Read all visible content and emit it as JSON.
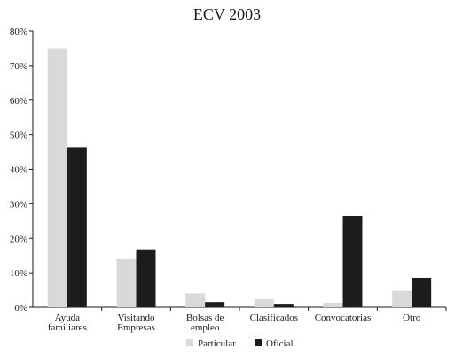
{
  "chart_data": {
    "type": "bar",
    "title": "ECV 2003",
    "xlabel": "",
    "ylabel": "",
    "categories": [
      [
        "Ayuda",
        "familiares"
      ],
      [
        "Visitando",
        "Empresas"
      ],
      [
        "Bolsas de",
        "empleo"
      ],
      [
        "Clasificados"
      ],
      [
        "Convocatorias"
      ],
      [
        "Otro"
      ]
    ],
    "series": [
      {
        "name": "Particular",
        "color": "#d9d9d9",
        "values": [
          75.0,
          14.2,
          4.0,
          2.3,
          1.3,
          4.7
        ]
      },
      {
        "name": "Oficial",
        "color": "#1c1c1c",
        "values": [
          46.2,
          16.8,
          1.5,
          1.0,
          26.5,
          8.5
        ]
      }
    ],
    "ylim": [
      0,
      80
    ],
    "yticks": [
      0,
      10,
      20,
      30,
      40,
      50,
      60,
      70,
      80
    ],
    "ytick_format": "%",
    "grid": false,
    "legend_position": "bottom"
  }
}
